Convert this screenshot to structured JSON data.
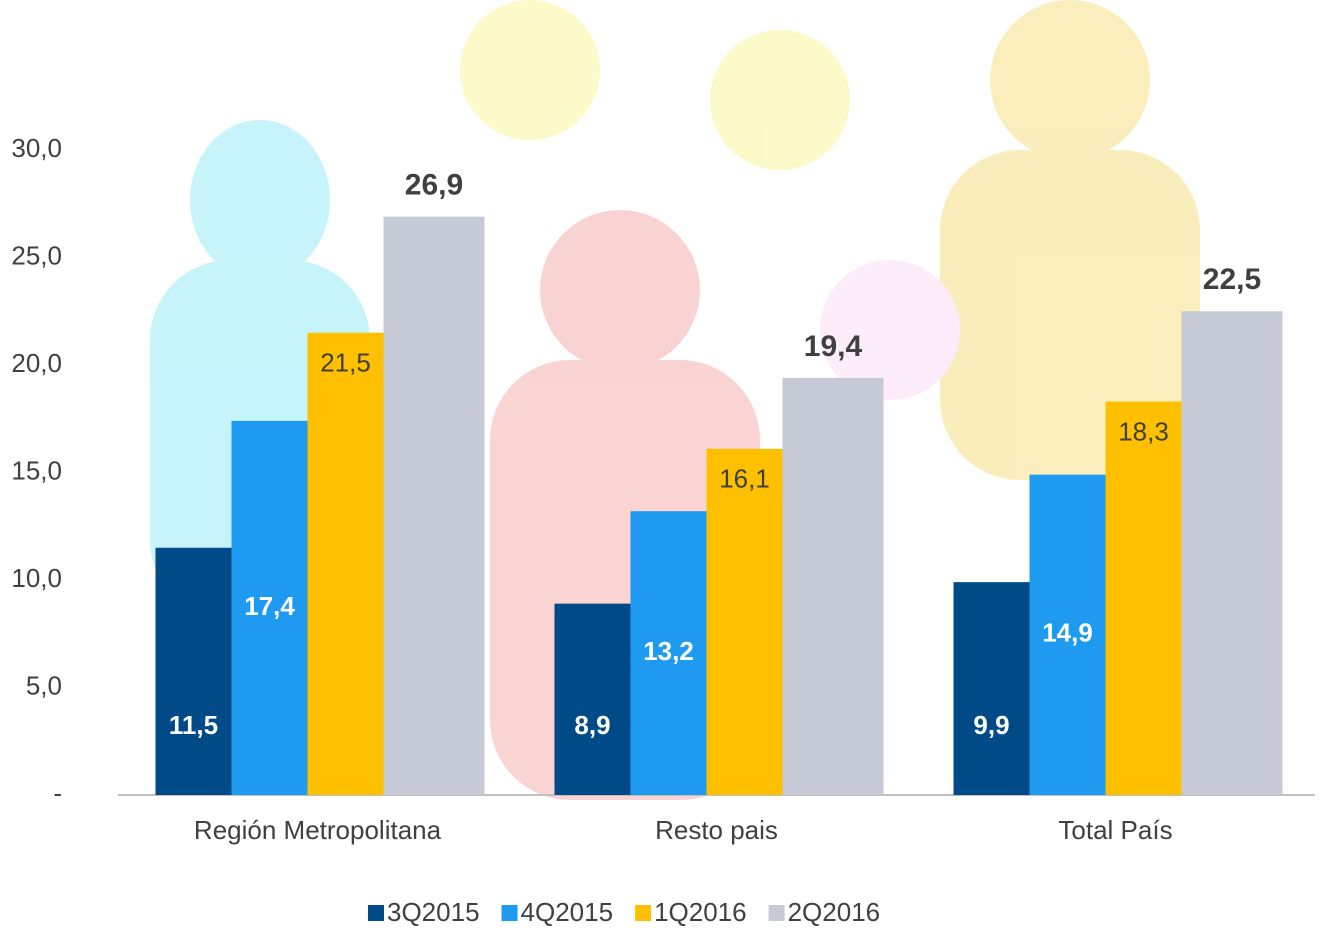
{
  "chart_data": {
    "type": "bar",
    "categories": [
      "Región Metropolitana",
      "Resto pais",
      "Total País"
    ],
    "series": [
      {
        "name": "3Q2015",
        "color": "#004b87",
        "values": [
          11.5,
          8.9,
          9.9
        ],
        "value_labels": [
          "11,5",
          "8,9",
          "9,9"
        ]
      },
      {
        "name": "4Q2015",
        "color": "#1e9bf0",
        "values": [
          17.4,
          13.2,
          14.9
        ],
        "value_labels": [
          "17,4",
          "13,2",
          "14,9"
        ]
      },
      {
        "name": "1Q2016",
        "color": "#ffc000",
        "values": [
          21.5,
          16.1,
          18.3
        ],
        "value_labels": [
          "21,5",
          "16,1",
          "18,3"
        ]
      },
      {
        "name": "2Q2016",
        "color": "#c5cad6",
        "values": [
          26.9,
          19.4,
          22.5
        ],
        "value_labels": [
          "26,9",
          "19,4",
          "22,5"
        ]
      }
    ],
    "ylim": [
      0,
      30
    ],
    "yticks": [
      {
        "value": 0,
        "label": "-"
      },
      {
        "value": 5,
        "label": "5,0"
      },
      {
        "value": 10,
        "label": "10,0"
      },
      {
        "value": 15,
        "label": "15,0"
      },
      {
        "value": 20,
        "label": "20,0"
      },
      {
        "value": 25,
        "label": "25,0"
      },
      {
        "value": 30,
        "label": "30,0"
      }
    ],
    "legend": "bottom"
  }
}
